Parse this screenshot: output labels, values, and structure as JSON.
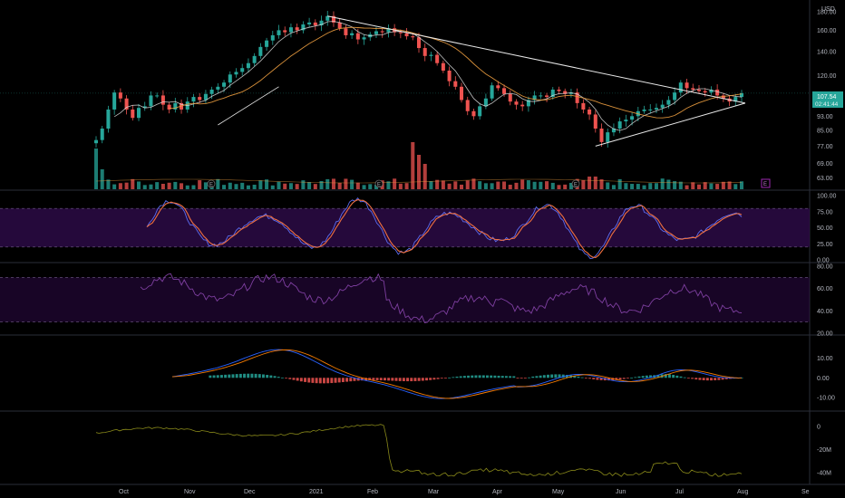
{
  "currency_label": "USD",
  "price_badge": {
    "value": "107.54",
    "countdown": "02:41:44"
  },
  "earnings_marker": "E",
  "colors": {
    "background": "#000000",
    "up": "#26a69a",
    "down": "#ef5350",
    "ma_fast": "#e0e0e0",
    "ma_slow": "#f0a040",
    "trendline": "#e8e8e8",
    "stoch_k": "#5b6cf0",
    "stoch_d": "#f07040",
    "stoch_band": "#2b0a45",
    "rsi_line": "#7e3fa0",
    "macd_line": "#2962ff",
    "signal_line": "#f57c00",
    "obv_line": "#8a8a1a",
    "earnings_box": "#9c27b0"
  },
  "chart_data": [
    {
      "type": "candlestick",
      "panel": "price",
      "x_ticks": [
        "Oct",
        "Nov",
        "Dec",
        "2021",
        "Feb",
        "Mar",
        "Apr",
        "May",
        "Jun",
        "Jul",
        "Aug",
        "Se"
      ],
      "y_ticks": [
        "180.00",
        "160.00",
        "140.00",
        "120.00",
        "107.54",
        "100.00",
        "93.00",
        "85.00",
        "77.00",
        "69.00",
        "63.00"
      ],
      "ylim": [
        60,
        185
      ],
      "log_scale": true,
      "last_price": 107.54,
      "closes": [
        80,
        86,
        97,
        108,
        104,
        97,
        92,
        98,
        99,
        106,
        106,
        100,
        97,
        101,
        97,
        102,
        105,
        103,
        107,
        110,
        112,
        115,
        121,
        123,
        126,
        130,
        136,
        144,
        150,
        155,
        160,
        158,
        163,
        160,
        166,
        168,
        165,
        170,
        175,
        168,
        162,
        155,
        157,
        151,
        153,
        156,
        159,
        158,
        162,
        158,
        157,
        154,
        153,
        143,
        136,
        137,
        130,
        124,
        116,
        112,
        103,
        96,
        93,
        99,
        104,
        113,
        111,
        107,
        102,
        100,
        99,
        103,
        106,
        106,
        105,
        110,
        109,
        107,
        108,
        101,
        97,
        94,
        86,
        79,
        84,
        86,
        90,
        91,
        93,
        96,
        97,
        97,
        98,
        100,
        103,
        108,
        115,
        111,
        110,
        109,
        108,
        110,
        106,
        104,
        102,
        105,
        107.54
      ],
      "annotations": [
        "E",
        "E",
        "E",
        "E",
        "E"
      ]
    },
    {
      "type": "bar",
      "panel": "volume",
      "note": "volume histogram at bottom of price panel"
    },
    {
      "type": "line",
      "panel": "stochastic",
      "y_ticks": [
        "100.00",
        "75.00",
        "50.00",
        "25.00",
        "0.00"
      ],
      "ylim": [
        0,
        100
      ],
      "band": [
        20,
        80
      ]
    },
    {
      "type": "line",
      "panel": "rsi",
      "y_ticks": [
        "80.00",
        "60.00",
        "40.00",
        "20.00"
      ],
      "ylim": [
        20,
        80
      ],
      "band": [
        30,
        70
      ]
    },
    {
      "type": "line",
      "panel": "macd",
      "y_ticks": [
        "10.00",
        "0.00",
        "-10.00"
      ],
      "ylim": [
        -15,
        18
      ]
    },
    {
      "type": "line",
      "panel": "obv",
      "y_ticks": [
        "0",
        "-20M",
        "-40M"
      ],
      "ylim": [
        -48,
        10
      ]
    }
  ]
}
